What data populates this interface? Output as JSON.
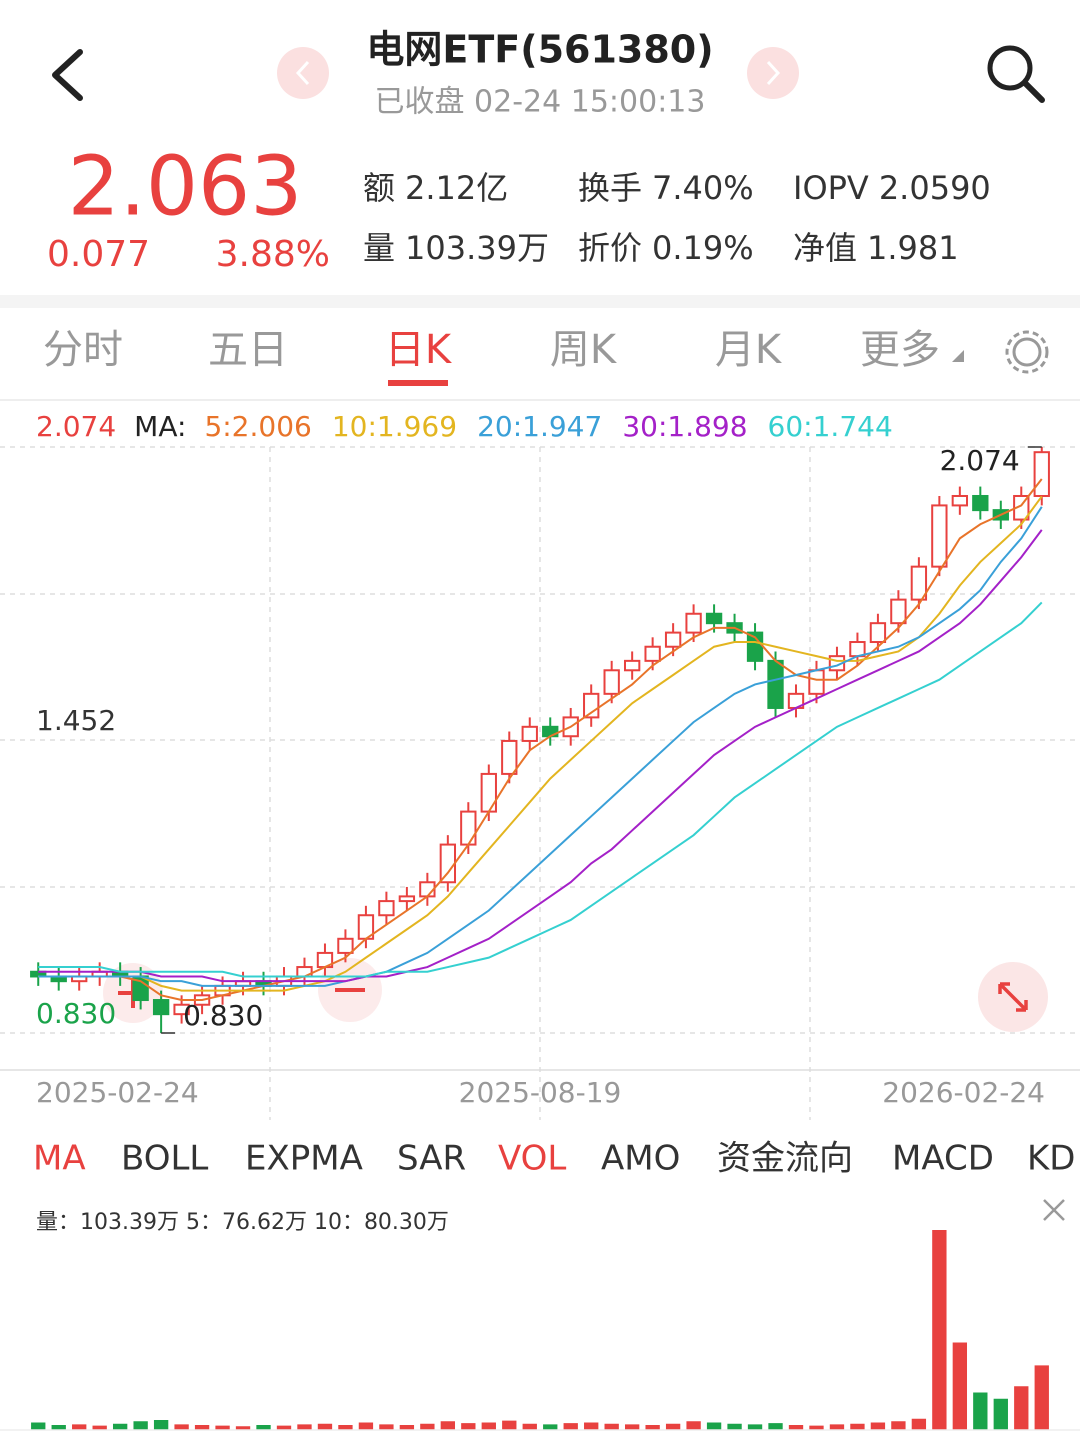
{
  "header": {
    "title": "电网ETF(561380)",
    "subtitle": "已收盘 02-24 15:00:13"
  },
  "quote": {
    "price": "2.063",
    "change": "0.077",
    "change_pct": "3.88%",
    "stats": [
      {
        "label": "额",
        "value": "2.12亿"
      },
      {
        "label": "换手",
        "value": "7.40%"
      },
      {
        "label": "IOPV",
        "value": "2.0590"
      },
      {
        "label": "量",
        "value": "103.39万"
      },
      {
        "label": "折价",
        "value": "0.19%"
      },
      {
        "label": "净值",
        "value": "1.981"
      }
    ]
  },
  "tabs": [
    "分时",
    "五日",
    "日K",
    "周K",
    "月K",
    "更多"
  ],
  "indicator_tabs": [
    "MA",
    "BOLL",
    "EXPMA",
    "SAR",
    "VOL",
    "AMO",
    "资金流向",
    "MACD",
    "KD"
  ],
  "chart_data": [
    {
      "type": "candlestick",
      "current": "2.074",
      "ma_label": "MA:",
      "up_color": "#e8413f",
      "down_color": "#1aa34a",
      "ylim": [
        0.83,
        2.074
      ],
      "yticks": [
        {
          "value": 1.452,
          "label": "1.452"
        },
        {
          "value": 0.83,
          "label": "0.830"
        }
      ],
      "xtick_labels": [
        "2025-02-24",
        "2025-08-19",
        "2026-02-24"
      ],
      "annotations": [
        "2.074",
        "0.830"
      ],
      "open": [
        0.96,
        0.95,
        0.94,
        0.95,
        0.96,
        0.95,
        0.9,
        0.87,
        0.89,
        0.91,
        0.93,
        0.94,
        0.93,
        0.95,
        0.97,
        1.0,
        1.03,
        1.08,
        1.11,
        1.12,
        1.15,
        1.23,
        1.3,
        1.38,
        1.45,
        1.48,
        1.46,
        1.5,
        1.55,
        1.6,
        1.62,
        1.65,
        1.68,
        1.72,
        1.7,
        1.68,
        1.62,
        1.52,
        1.55,
        1.6,
        1.63,
        1.66,
        1.7,
        1.75,
        1.82,
        1.95,
        1.97,
        1.94,
        1.92,
        1.97
      ],
      "high": [
        0.98,
        0.97,
        0.97,
        0.98,
        0.98,
        0.97,
        0.92,
        0.91,
        0.93,
        0.95,
        0.96,
        0.96,
        0.97,
        0.99,
        1.02,
        1.05,
        1.1,
        1.13,
        1.14,
        1.17,
        1.25,
        1.32,
        1.4,
        1.47,
        1.5,
        1.5,
        1.52,
        1.57,
        1.62,
        1.64,
        1.67,
        1.7,
        1.74,
        1.74,
        1.72,
        1.7,
        1.64,
        1.57,
        1.62,
        1.65,
        1.68,
        1.72,
        1.77,
        1.84,
        1.97,
        1.99,
        1.99,
        1.96,
        1.99,
        2.074
      ],
      "low": [
        0.93,
        0.92,
        0.92,
        0.93,
        0.93,
        0.88,
        0.83,
        0.85,
        0.87,
        0.89,
        0.91,
        0.91,
        0.91,
        0.93,
        0.95,
        0.98,
        1.01,
        1.06,
        1.09,
        1.1,
        1.13,
        1.21,
        1.28,
        1.36,
        1.43,
        1.44,
        1.44,
        1.48,
        1.53,
        1.58,
        1.6,
        1.63,
        1.66,
        1.68,
        1.66,
        1.6,
        1.5,
        1.5,
        1.53,
        1.58,
        1.61,
        1.64,
        1.68,
        1.73,
        1.8,
        1.93,
        1.92,
        1.9,
        1.9,
        1.95
      ],
      "close": [
        0.95,
        0.94,
        0.95,
        0.96,
        0.95,
        0.9,
        0.87,
        0.89,
        0.91,
        0.93,
        0.94,
        0.93,
        0.95,
        0.97,
        1.0,
        1.03,
        1.08,
        1.11,
        1.12,
        1.15,
        1.23,
        1.3,
        1.38,
        1.45,
        1.48,
        1.46,
        1.5,
        1.55,
        1.6,
        1.62,
        1.65,
        1.68,
        1.72,
        1.7,
        1.68,
        1.62,
        1.52,
        1.55,
        1.6,
        1.63,
        1.66,
        1.7,
        1.75,
        1.82,
        1.95,
        1.97,
        1.94,
        1.92,
        1.97,
        2.063
      ],
      "series": [
        {
          "name": "5:2.006",
          "color": "#e8742a",
          "values": [
            0.95,
            0.95,
            0.95,
            0.95,
            0.95,
            0.94,
            0.91,
            0.9,
            0.9,
            0.91,
            0.92,
            0.93,
            0.94,
            0.95,
            0.97,
            0.99,
            1.03,
            1.06,
            1.09,
            1.12,
            1.17,
            1.23,
            1.3,
            1.37,
            1.43,
            1.46,
            1.48,
            1.51,
            1.54,
            1.57,
            1.61,
            1.64,
            1.67,
            1.69,
            1.69,
            1.67,
            1.62,
            1.59,
            1.58,
            1.58,
            1.61,
            1.65,
            1.69,
            1.74,
            1.81,
            1.88,
            1.91,
            1.93,
            1.95,
            2.006
          ]
        },
        {
          "name": "10:1.969",
          "color": "#e3b520",
          "values": [
            0.95,
            0.95,
            0.95,
            0.95,
            0.95,
            0.95,
            0.93,
            0.92,
            0.92,
            0.92,
            0.92,
            0.92,
            0.92,
            0.93,
            0.94,
            0.96,
            0.99,
            1.02,
            1.05,
            1.08,
            1.12,
            1.17,
            1.22,
            1.27,
            1.32,
            1.37,
            1.41,
            1.45,
            1.49,
            1.53,
            1.56,
            1.59,
            1.62,
            1.65,
            1.66,
            1.66,
            1.65,
            1.64,
            1.63,
            1.62,
            1.62,
            1.63,
            1.64,
            1.67,
            1.72,
            1.78,
            1.83,
            1.87,
            1.91,
            1.969
          ]
        },
        {
          "name": "20:1.947",
          "color": "#3aa0d8",
          "values": [
            0.95,
            0.95,
            0.95,
            0.95,
            0.95,
            0.95,
            0.94,
            0.94,
            0.93,
            0.93,
            0.93,
            0.93,
            0.93,
            0.93,
            0.93,
            0.94,
            0.95,
            0.96,
            0.98,
            1.0,
            1.03,
            1.06,
            1.09,
            1.13,
            1.17,
            1.21,
            1.25,
            1.29,
            1.33,
            1.37,
            1.41,
            1.45,
            1.49,
            1.52,
            1.55,
            1.57,
            1.58,
            1.59,
            1.6,
            1.61,
            1.63,
            1.64,
            1.65,
            1.67,
            1.7,
            1.73,
            1.77,
            1.83,
            1.88,
            1.947
          ]
        },
        {
          "name": "30:1.898",
          "color": "#a421c8",
          "values": [
            0.96,
            0.96,
            0.96,
            0.96,
            0.96,
            0.96,
            0.95,
            0.95,
            0.95,
            0.94,
            0.94,
            0.94,
            0.94,
            0.94,
            0.94,
            0.94,
            0.95,
            0.95,
            0.96,
            0.97,
            0.99,
            1.01,
            1.03,
            1.06,
            1.09,
            1.12,
            1.15,
            1.19,
            1.22,
            1.26,
            1.3,
            1.34,
            1.38,
            1.42,
            1.45,
            1.48,
            1.5,
            1.52,
            1.54,
            1.56,
            1.58,
            1.6,
            1.62,
            1.64,
            1.67,
            1.7,
            1.74,
            1.79,
            1.84,
            1.898
          ]
        },
        {
          "name": "60:1.744",
          "color": "#35d0d0",
          "values": [
            0.97,
            0.97,
            0.97,
            0.97,
            0.96,
            0.96,
            0.96,
            0.96,
            0.96,
            0.96,
            0.95,
            0.95,
            0.95,
            0.95,
            0.95,
            0.95,
            0.95,
            0.96,
            0.96,
            0.96,
            0.97,
            0.98,
            0.99,
            1.01,
            1.03,
            1.05,
            1.07,
            1.1,
            1.13,
            1.16,
            1.19,
            1.22,
            1.25,
            1.29,
            1.33,
            1.36,
            1.39,
            1.42,
            1.45,
            1.48,
            1.5,
            1.52,
            1.54,
            1.56,
            1.58,
            1.61,
            1.64,
            1.67,
            1.7,
            1.744
          ]
        }
      ]
    },
    {
      "type": "bar",
      "title": "量：103.39万  5：76.62万  10：80.30万",
      "values": [
        12,
        8,
        9,
        7,
        10,
        14,
        16,
        9,
        8,
        7,
        6,
        8,
        7,
        9,
        10,
        8,
        12,
        9,
        8,
        10,
        14,
        11,
        12,
        15,
        10,
        9,
        11,
        12,
        10,
        9,
        8,
        10,
        14,
        12,
        10,
        9,
        11,
        8,
        7,
        9,
        10,
        12,
        14,
        18,
        320,
        140,
        60,
        50,
        70,
        103.39
      ]
    }
  ]
}
